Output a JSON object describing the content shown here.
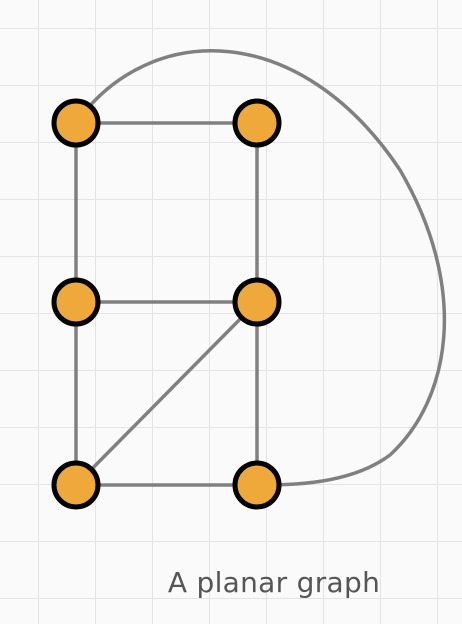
{
  "caption": "A planar graph",
  "colors": {
    "node_fill": "#eea93a",
    "node_stroke": "#000000",
    "edge": "#808080",
    "grid": "#e4e4e4",
    "background": "#fafafa"
  },
  "graph": {
    "nodes": [
      {
        "id": "top-left"
      },
      {
        "id": "top-right"
      },
      {
        "id": "middle-left"
      },
      {
        "id": "middle-right"
      },
      {
        "id": "bottom-left"
      },
      {
        "id": "bottom-right"
      }
    ],
    "edges": [
      {
        "from": "top-left",
        "to": "top-right"
      },
      {
        "from": "top-left",
        "to": "middle-left"
      },
      {
        "from": "top-right",
        "to": "middle-right"
      },
      {
        "from": "middle-left",
        "to": "middle-right"
      },
      {
        "from": "middle-left",
        "to": "bottom-left"
      },
      {
        "from": "middle-right",
        "to": "bottom-right"
      },
      {
        "from": "middle-right",
        "to": "bottom-left"
      },
      {
        "from": "bottom-left",
        "to": "bottom-right"
      },
      {
        "from": "top-left",
        "to": "bottom-right",
        "curved": true
      }
    ]
  }
}
